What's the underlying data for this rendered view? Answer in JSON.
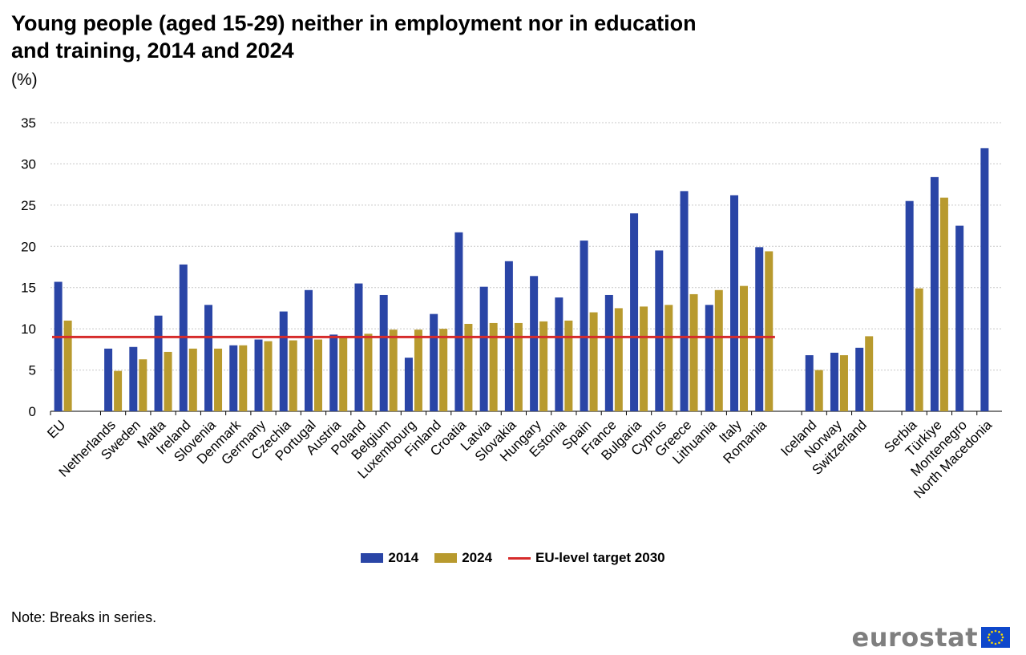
{
  "title": "Young people (aged 15-29) neither in employment nor in education and training, 2014 and 2024",
  "unit": "(%)",
  "note": "Note: Breaks in series.",
  "logo_text": "eurostat",
  "colors": {
    "series_2014": "#2a45a6",
    "series_2024": "#b89a2e",
    "target": "#d62b2b",
    "grid": "#c8c8c8"
  },
  "chart_data": {
    "type": "bar",
    "ylim": [
      0,
      35
    ],
    "yticks": [
      0,
      5,
      10,
      15,
      20,
      25,
      30,
      35
    ],
    "categories": [
      "EU",
      "",
      "Netherlands",
      "Sweden",
      "Malta",
      "Ireland",
      "Slovenia",
      "Denmark",
      "Germany",
      "Czechia",
      "Portugal",
      "Austria",
      "Poland",
      "Belgium",
      "Luxembourg",
      "Finland",
      "Croatia",
      "Latvia",
      "Slovakia",
      "Hungary",
      "Estonia",
      "Spain",
      "France",
      "Bulgaria",
      "Cyprus",
      "Greece",
      "Lithuania",
      "Italy",
      "Romania",
      "",
      "Iceland",
      "Norway",
      "Switzerland",
      "",
      "Serbia",
      "Türkiye",
      "Montenegro",
      "North Macedonia"
    ],
    "series": [
      {
        "name": "2014",
        "values": [
          15.7,
          null,
          7.6,
          7.8,
          11.6,
          17.8,
          12.9,
          8.0,
          8.7,
          12.1,
          14.7,
          9.3,
          15.5,
          14.1,
          6.5,
          11.8,
          21.7,
          15.1,
          18.2,
          16.4,
          13.8,
          20.7,
          14.1,
          24.0,
          19.5,
          26.7,
          12.9,
          26.2,
          19.9,
          null,
          6.8,
          7.1,
          7.7,
          null,
          25.5,
          28.4,
          22.5,
          31.9
        ]
      },
      {
        "name": "2024",
        "values": [
          11.0,
          null,
          4.9,
          6.3,
          7.2,
          7.6,
          7.6,
          8.0,
          8.5,
          8.6,
          8.7,
          9.1,
          9.4,
          9.9,
          9.9,
          10.0,
          10.6,
          10.7,
          10.7,
          10.9,
          11.0,
          12.0,
          12.5,
          12.7,
          12.9,
          14.2,
          14.7,
          15.2,
          19.4,
          null,
          5.0,
          6.8,
          9.1,
          null,
          14.9,
          25.9,
          null,
          null
        ]
      }
    ],
    "target": {
      "name": "EU-level target 2030",
      "value": 9,
      "from": "EU",
      "to": "Romania"
    }
  }
}
